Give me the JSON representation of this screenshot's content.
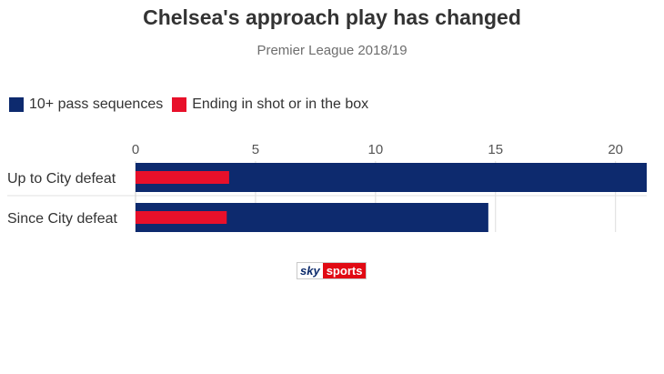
{
  "chart_data": {
    "type": "bar",
    "orientation": "horizontal",
    "title": "Chelsea's approach play has changed",
    "subtitle": "Premier League 2018/19",
    "categories": [
      "Up to City defeat",
      "Since City defeat"
    ],
    "series": [
      {
        "name": "10+ pass sequences",
        "values": [
          21.3,
          14.7
        ],
        "color": "#0d2a6e"
      },
      {
        "name": "Ending in shot or in the box",
        "values": [
          3.9,
          3.8
        ],
        "color": "#e8102a"
      }
    ],
    "xticks": [
      "0",
      "5",
      "10",
      "15",
      "20"
    ],
    "xlim": [
      0,
      21.3
    ],
    "grid": true,
    "legend_position": "top-left"
  },
  "branding": {
    "sky": "sky",
    "sports": "sports"
  }
}
